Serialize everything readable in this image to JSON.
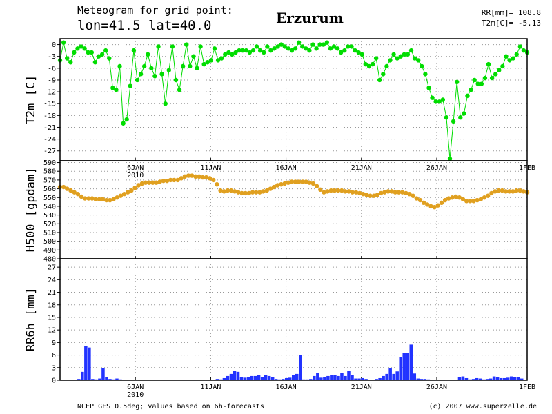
{
  "header": {
    "line1": "Meteogram for grid point:",
    "line2": "lon=41.5 lat=40.0",
    "city": "Erzurum",
    "rr_total": "RR[mm]= 108.8",
    "t2m_mean": "T2m[C]= -5.13"
  },
  "footer": {
    "source": "NCEP GFS 0.5deg; values based on 6h-forecasts",
    "credit": "(c) 2007 www.superzelle.de"
  },
  "x_axis": {
    "tick_labels": [
      "6JAN",
      "11JAN",
      "16JAN",
      "21JAN",
      "26JAN",
      "1FEB"
    ],
    "tick_days": [
      5,
      10,
      15,
      20,
      25,
      31
    ],
    "year_label": "2010",
    "range_days": [
      0,
      31
    ]
  },
  "colors": {
    "t2m": "#00dd00",
    "h500": "#e0a020",
    "rr6h": "#2233ff",
    "grid": "#999999"
  },
  "chart_data": [
    {
      "type": "line",
      "ylabel": "T2m [C]",
      "yticks": [
        0,
        -3,
        -6,
        -9,
        -12,
        -15,
        -18,
        -21,
        -24,
        -27
      ],
      "ylim": [
        -29.5,
        1.5
      ],
      "x_unit": "days since 1 Jan 2010, 6h steps",
      "series": [
        {
          "values": [
            -4,
            0.5,
            -3.5,
            -4.5,
            -2,
            -1,
            -0.5,
            -1,
            -2,
            -2,
            -4.5,
            -3,
            -2.5,
            -1.5,
            -3.5,
            -11,
            -11.5,
            -5.5,
            -20,
            -19,
            -10.5,
            -1.5,
            -9,
            -7.5,
            -5.5,
            -2.5,
            -6,
            -8,
            -0.5,
            -7.5,
            -15,
            -6.5,
            -0.5,
            -9,
            -11.5,
            -5.5,
            0,
            -5.5,
            -3,
            -6,
            -0.5,
            -5,
            -4.5,
            -4,
            -1,
            -4,
            -3.5,
            -2.5,
            -2,
            -2.5,
            -2,
            -1.5,
            -1.5,
            -1.5,
            -2,
            -1.5,
            -0.5,
            -1.5,
            -2,
            -0.5,
            -1.5,
            -1,
            -0.5,
            0,
            -0.5,
            -1,
            -1.5,
            -1,
            0.5,
            -0.5,
            -1,
            -1.5,
            0,
            -1,
            0,
            0,
            0.5,
            -1,
            -0.5,
            -1,
            -2,
            -1.5,
            -0.5,
            -0.5,
            -1.5,
            -2,
            -2.5,
            -5,
            -5.5,
            -5,
            -3.5,
            -9,
            -7.5,
            -5.5,
            -4,
            -2.5,
            -3.5,
            -3,
            -2.5,
            -2.5,
            -1.5,
            -3.5,
            -4,
            -5.5,
            -7.5,
            -11,
            -13.5,
            -14.5,
            -14.5,
            -14,
            -18.5,
            -29,
            -19.5,
            -9.5,
            -18.5,
            -17.5,
            -13,
            -11.5,
            -9,
            -10,
            -10,
            -8.5,
            -5,
            -8.5,
            -7.5,
            -6.5,
            -5.5,
            -3,
            -4,
            -3.5,
            -2.5,
            -0.5,
            -1.5,
            -2
          ]
        }
      ]
    },
    {
      "type": "line",
      "ylabel": "H500 [gpdam]",
      "yticks": [
        590,
        580,
        570,
        560,
        550,
        540,
        530,
        520,
        510,
        500,
        490,
        480
      ],
      "ylim": [
        480,
        592
      ],
      "x_unit": "days since 1 Jan 2010, 6h steps",
      "series": [
        {
          "values": [
            562,
            562,
            560,
            558,
            556,
            554,
            551,
            549,
            549,
            549,
            548,
            548,
            548,
            547,
            547,
            548,
            550,
            552,
            554,
            556,
            558,
            561,
            564,
            566,
            567,
            567,
            567,
            567,
            568,
            569,
            569,
            570,
            570,
            570,
            572,
            574,
            575,
            575,
            574,
            574,
            573,
            573,
            572,
            570,
            565,
            558,
            557,
            558,
            558,
            557,
            556,
            555,
            555,
            555,
            556,
            556,
            556,
            557,
            558,
            560,
            562,
            564,
            565,
            566,
            567,
            568,
            568,
            568,
            568,
            568,
            567,
            566,
            563,
            559,
            556,
            557,
            558,
            558,
            558,
            558,
            557,
            557,
            556,
            556,
            555,
            554,
            553,
            552,
            552,
            553,
            555,
            556,
            557,
            557,
            556,
            556,
            556,
            555,
            554,
            552,
            549,
            547,
            544,
            542,
            540,
            539,
            541,
            544,
            547,
            549,
            550,
            551,
            550,
            548,
            546,
            546,
            546,
            547,
            548,
            550,
            552,
            555,
            557,
            558,
            558,
            557,
            557,
            557,
            558,
            558,
            557,
            556
          ]
        }
      ]
    },
    {
      "type": "bar",
      "ylabel": "RR6h [mm]",
      "yticks": [
        27,
        24,
        21,
        18,
        15,
        12,
        9,
        6,
        3,
        0
      ],
      "ylim": [
        0,
        29
      ],
      "x_unit": "days since 1 Jan 2010, 6h steps",
      "series": [
        {
          "values": [
            0,
            0,
            0,
            0,
            0,
            0.3,
            2,
            8.2,
            7.8,
            0.3,
            0.2,
            0.4,
            2.8,
            0.8,
            0.3,
            0.2,
            0.4,
            0.2,
            0.1,
            0,
            0.1,
            0.1,
            0,
            0,
            0,
            0,
            0,
            0,
            0,
            0,
            0,
            0,
            0,
            0,
            0,
            0,
            0,
            0,
            0,
            0,
            0,
            0,
            0,
            0,
            0,
            0.3,
            0.2,
            0.5,
            1,
            1.5,
            2.3,
            2,
            0.7,
            0.6,
            0.7,
            1,
            1,
            1.2,
            0.8,
            1.2,
            1,
            0.8,
            0.3,
            0.2,
            0.3,
            0.5,
            0.6,
            1.2,
            1.5,
            6,
            0.2,
            0.2,
            0.3,
            1,
            1.8,
            0.6,
            0.8,
            1,
            1.3,
            1.2,
            1,
            1.8,
            1,
            2.2,
            1.3,
            0.4,
            0.4,
            0.5,
            0.3,
            0.1,
            0.1,
            0.3,
            0.5,
            1,
            1.5,
            2.8,
            1.5,
            2.1,
            5.5,
            6.5,
            6.5,
            8.5,
            1.6,
            0.4,
            0.3,
            0.3,
            0.2,
            0.1,
            0.1,
            0,
            0,
            0,
            0,
            0,
            0,
            0.7,
            0.9,
            0.5,
            0.2,
            0.3,
            0.5,
            0.4,
            0.2,
            0.3,
            0.4,
            0.9,
            0.8,
            0.5,
            0.5,
            0.6,
            0.9,
            0.8,
            0.7,
            0.4,
            0.1
          ]
        }
      ]
    }
  ]
}
